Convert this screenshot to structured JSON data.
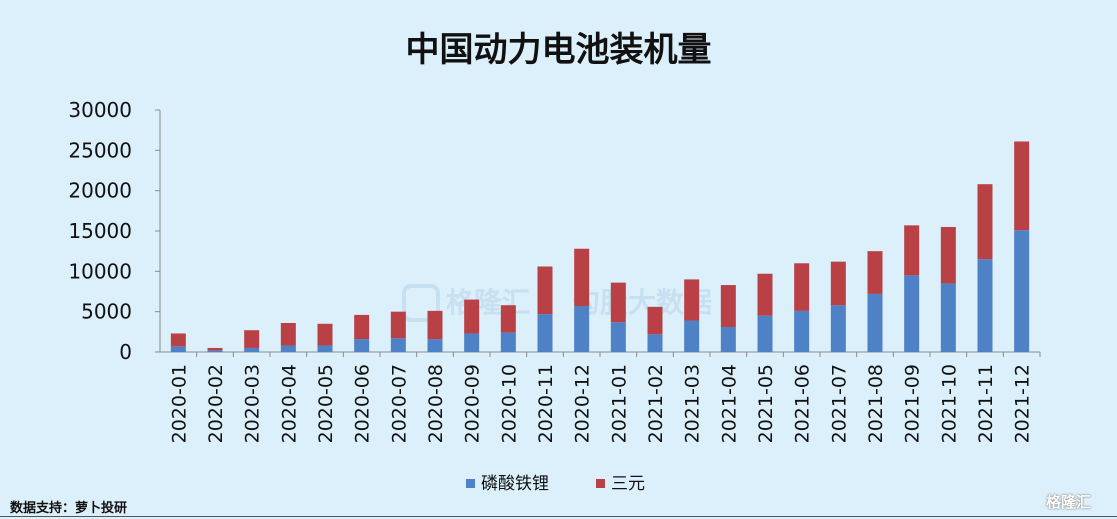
{
  "chart_data": {
    "type": "bar",
    "stacked": true,
    "title": "中国动力电池装机量",
    "xlabel": "",
    "ylabel": "",
    "ylim": [
      0,
      30000
    ],
    "yticks": [
      "30000",
      "25000",
      "20000",
      "15000",
      "10000",
      "5000",
      "0"
    ],
    "categories": [
      "2020-01",
      "2020-02",
      "2020-03",
      "2020-04",
      "2020-05",
      "2020-06",
      "2020-07",
      "2020-08",
      "2020-09",
      "2020-10",
      "2020-11",
      "2020-12",
      "2021-01",
      "2021-02",
      "2021-03",
      "2021-04",
      "2021-05",
      "2021-06",
      "2021-07",
      "2021-08",
      "2021-09",
      "2021-10",
      "2021-11",
      "2021-12"
    ],
    "series": [
      {
        "name": "磷酸铁锂",
        "color": "#4f81c6",
        "values": [
          700,
          200,
          500,
          800,
          800,
          1600,
          1700,
          1600,
          2300,
          2400,
          4700,
          5700,
          3700,
          2200,
          3900,
          3100,
          4500,
          5100,
          5800,
          7200,
          9500,
          8500,
          11500,
          15100
        ]
      },
      {
        "name": "三元",
        "color": "#b94145",
        "values": [
          1600,
          300,
          2200,
          2800,
          2700,
          3000,
          3300,
          3500,
          4200,
          3400,
          5900,
          7100,
          4900,
          3400,
          5100,
          5200,
          5200,
          5900,
          5400,
          5300,
          6200,
          7000,
          9300,
          11000
        ]
      }
    ],
    "legend": "bottom",
    "grid": false
  },
  "source": "数据支持：萝卜投研",
  "watermarks": [
    "格隆汇",
    "勾股大数据",
    "格隆汇"
  ]
}
